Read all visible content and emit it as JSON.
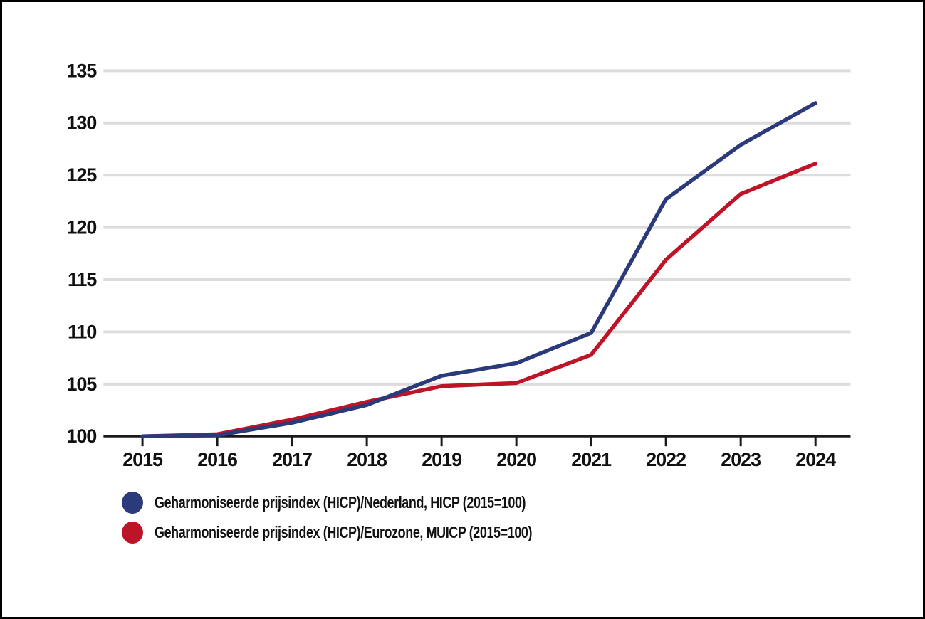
{
  "chart_data": {
    "type": "line",
    "title": "",
    "xlabel": "",
    "ylabel": "",
    "x": [
      2015,
      2016,
      2017,
      2018,
      2019,
      2020,
      2021,
      2022,
      2023,
      2024
    ],
    "series": [
      {
        "name": "Geharmoniseerde prijsindex (HICP)/Nederland, HICP (2015=100)",
        "color": "#2b3a7b",
        "values": [
          100,
          100.1,
          101.3,
          103.0,
          105.8,
          107.0,
          109.9,
          122.7,
          127.9,
          131.9
        ]
      },
      {
        "name": "Geharmoniseerde prijsindex (HICP)/Eurozone, MUICP (2015=100)",
        "color": "#be1428",
        "values": [
          100,
          100.2,
          101.6,
          103.3,
          104.8,
          105.1,
          107.8,
          116.9,
          123.2,
          126.1
        ]
      }
    ],
    "ylim": [
      100,
      135
    ],
    "yticks": [
      100,
      105,
      110,
      115,
      120,
      125,
      130,
      135
    ],
    "grid": "horizontal",
    "legend_position": "bottom-left"
  },
  "colors": {
    "grid": "#dcdcdc",
    "axis": "#1a1a1a",
    "text": "#111111",
    "background": "#ffffff",
    "border": "#000000"
  }
}
